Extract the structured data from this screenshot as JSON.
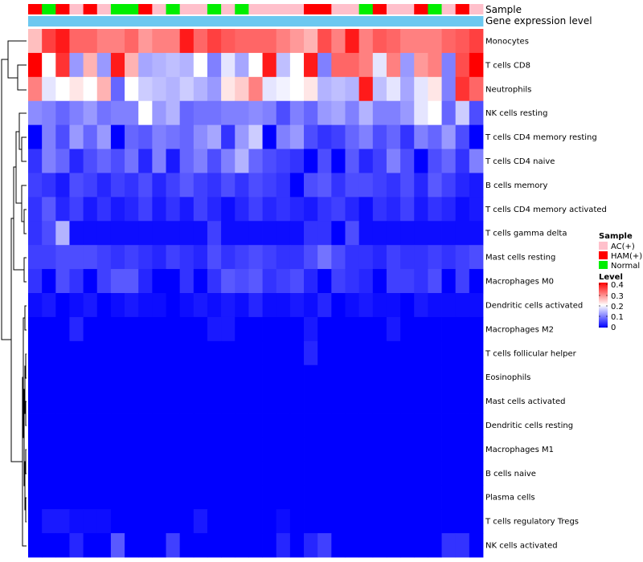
{
  "chart_data": {
    "type": "heatmap",
    "title": "",
    "column_annotations": [
      {
        "name": "Sample",
        "label": "Sample"
      },
      {
        "name": "Gene expression level",
        "label": "Gene expression level"
      }
    ],
    "sample_groups": [
      "HAM",
      "Normal",
      "HAM",
      "AC",
      "HAM",
      "AC",
      "Normal",
      "Normal",
      "HAM",
      "AC",
      "Normal",
      "AC",
      "AC",
      "Normal",
      "AC",
      "Normal",
      "AC",
      "AC",
      "AC",
      "AC",
      "HAM",
      "HAM",
      "AC",
      "AC",
      "Normal",
      "HAM",
      "AC",
      "AC",
      "HAM",
      "Normal",
      "AC",
      "HAM",
      "AC"
    ],
    "rows": [
      "Monocytes",
      "T cells CD8",
      "Neutrophils",
      "NK cells resting",
      "T cells CD4 memory resting",
      "T cells CD4 naive",
      "B cells memory",
      "T cells CD4 memory activated",
      "T cells gamma delta",
      "Mast cells resting",
      "Macrophages M0",
      "Dendritic cells activated",
      "Macrophages M2",
      "T cells follicular helper",
      "Eosinophils",
      "Mast cells activated",
      "Dendritic cells resting",
      "Macrophages M1",
      "B cells naive",
      "Plasma cells",
      "T cells regulatory  Tregs",
      "NK cells activated"
    ],
    "values": [
      [
        0.25,
        0.35,
        0.38,
        0.32,
        0.32,
        0.3,
        0.3,
        0.32,
        0.28,
        0.3,
        0.3,
        0.38,
        0.32,
        0.35,
        0.33,
        0.32,
        0.32,
        0.32,
        0.3,
        0.28,
        0.26,
        0.34,
        0.3,
        0.38,
        0.3,
        0.33,
        0.32,
        0.3,
        0.3,
        0.3,
        0.32,
        0.33,
        0.35
      ],
      [
        0.4,
        0.2,
        0.36,
        0.12,
        0.26,
        0.12,
        0.38,
        0.26,
        0.13,
        0.14,
        0.15,
        0.14,
        0.2,
        0.1,
        0.18,
        0.13,
        0.2,
        0.38,
        0.15,
        0.2,
        0.38,
        0.1,
        0.32,
        0.32,
        0.3,
        0.18,
        0.3,
        0.12,
        0.28,
        0.3,
        0.1,
        0.34,
        0.4
      ],
      [
        0.3,
        0.18,
        0.2,
        0.22,
        0.2,
        0.26,
        0.08,
        0.2,
        0.16,
        0.15,
        0.14,
        0.16,
        0.14,
        0.12,
        0.22,
        0.24,
        0.3,
        0.18,
        0.19,
        0.2,
        0.22,
        0.14,
        0.15,
        0.14,
        0.38,
        0.15,
        0.18,
        0.13,
        0.18,
        0.22,
        0.1,
        0.36,
        0.32
      ],
      [
        0.11,
        0.1,
        0.08,
        0.1,
        0.12,
        0.09,
        0.1,
        0.1,
        0.2,
        0.12,
        0.14,
        0.08,
        0.09,
        0.09,
        0.1,
        0.1,
        0.11,
        0.1,
        0.06,
        0.1,
        0.08,
        0.12,
        0.13,
        0.1,
        0.14,
        0.1,
        0.1,
        0.12,
        0.18,
        0.2,
        0.08,
        0.16,
        0.06
      ],
      [
        0.0,
        0.1,
        0.06,
        0.12,
        0.08,
        0.12,
        0.0,
        0.08,
        0.07,
        0.1,
        0.09,
        0.08,
        0.11,
        0.13,
        0.04,
        0.12,
        0.16,
        0.0,
        0.1,
        0.12,
        0.06,
        0.04,
        0.05,
        0.08,
        0.1,
        0.06,
        0.08,
        0.04,
        0.1,
        0.08,
        0.12,
        0.06,
        0.0
      ],
      [
        0.04,
        0.1,
        0.08,
        0.03,
        0.06,
        0.08,
        0.06,
        0.09,
        0.03,
        0.1,
        0.02,
        0.08,
        0.1,
        0.06,
        0.1,
        0.14,
        0.08,
        0.06,
        0.05,
        0.04,
        0.0,
        0.06,
        0.0,
        0.07,
        0.03,
        0.05,
        0.1,
        0.06,
        0.0,
        0.06,
        0.08,
        0.04,
        0.1
      ],
      [
        0.05,
        0.04,
        0.02,
        0.06,
        0.05,
        0.03,
        0.05,
        0.04,
        0.06,
        0.03,
        0.05,
        0.07,
        0.05,
        0.04,
        0.06,
        0.04,
        0.06,
        0.05,
        0.04,
        0.0,
        0.06,
        0.07,
        0.04,
        0.06,
        0.06,
        0.05,
        0.04,
        0.06,
        0.03,
        0.07,
        0.05,
        0.03,
        0.02
      ],
      [
        0.04,
        0.07,
        0.03,
        0.05,
        0.02,
        0.04,
        0.02,
        0.03,
        0.05,
        0.02,
        0.04,
        0.02,
        0.05,
        0.03,
        0.01,
        0.03,
        0.05,
        0.03,
        0.04,
        0.03,
        0.02,
        0.04,
        0.05,
        0.03,
        0.01,
        0.04,
        0.03,
        0.05,
        0.02,
        0.04,
        0.03,
        0.01,
        0.02
      ],
      [
        0.04,
        0.06,
        0.14,
        0.01,
        0.01,
        0.01,
        0.01,
        0.01,
        0.01,
        0.01,
        0.01,
        0.01,
        0.01,
        0.05,
        0.01,
        0.01,
        0.01,
        0.01,
        0.01,
        0.01,
        0.04,
        0.04,
        0.0,
        0.06,
        0.01,
        0.01,
        0.01,
        0.01,
        0.01,
        0.01,
        0.01,
        0.01,
        0.01
      ],
      [
        0.05,
        0.05,
        0.06,
        0.06,
        0.06,
        0.05,
        0.04,
        0.05,
        0.04,
        0.03,
        0.05,
        0.04,
        0.03,
        0.06,
        0.04,
        0.05,
        0.06,
        0.05,
        0.04,
        0.04,
        0.06,
        0.09,
        0.06,
        0.04,
        0.04,
        0.03,
        0.05,
        0.04,
        0.04,
        0.05,
        0.04,
        0.05,
        0.06
      ],
      [
        0.04,
        0.0,
        0.06,
        0.04,
        0.0,
        0.05,
        0.07,
        0.07,
        0.03,
        0.0,
        0.0,
        0.04,
        0.0,
        0.04,
        0.07,
        0.06,
        0.07,
        0.04,
        0.05,
        0.06,
        0.03,
        0.0,
        0.05,
        0.04,
        0.03,
        0.0,
        0.05,
        0.05,
        0.04,
        0.06,
        0.0,
        0.05,
        0.0
      ],
      [
        0.01,
        0.02,
        0.0,
        0.01,
        0.02,
        0.0,
        0.01,
        0.02,
        0.01,
        0.01,
        0.0,
        0.01,
        0.02,
        0.01,
        0.02,
        0.01,
        0.03,
        0.01,
        0.01,
        0.02,
        0.01,
        0.03,
        0.0,
        0.01,
        0.02,
        0.01,
        0.01,
        0.0,
        0.02,
        0.01,
        0.01,
        0.01,
        0.01
      ],
      [
        0.0,
        0.0,
        0.0,
        0.03,
        0.0,
        0.0,
        0.0,
        0.0,
        0.0,
        0.0,
        0.0,
        0.0,
        0.0,
        0.02,
        0.02,
        0.0,
        0.0,
        0.0,
        0.0,
        0.0,
        0.02,
        0.0,
        0.0,
        0.0,
        0.0,
        0.0,
        0.02,
        0.0,
        0.0,
        0.0,
        0.0,
        0.0,
        0.0
      ],
      [
        0.0,
        0.0,
        0.0,
        0.0,
        0.0,
        0.0,
        0.0,
        0.0,
        0.0,
        0.0,
        0.0,
        0.0,
        0.0,
        0.0,
        0.0,
        0.0,
        0.0,
        0.0,
        0.0,
        0.0,
        0.03,
        0.0,
        0.0,
        0.0,
        0.0,
        0.0,
        0.0,
        0.0,
        0.0,
        0.0,
        0.0,
        0.0,
        0.0
      ],
      [
        0.0,
        0.0,
        0.0,
        0.0,
        0.0,
        0.0,
        0.0,
        0.0,
        0.0,
        0.0,
        0.0,
        0.0,
        0.0,
        0.0,
        0.0,
        0.0,
        0.0,
        0.0,
        0.0,
        0.0,
        0.0,
        0.0,
        0.0,
        0.0,
        0.0,
        0.0,
        0.0,
        0.0,
        0.0,
        0.0,
        0.0,
        0.0,
        0.0
      ],
      [
        0.0,
        0.0,
        0.0,
        0.0,
        0.0,
        0.0,
        0.0,
        0.0,
        0.0,
        0.0,
        0.0,
        0.0,
        0.0,
        0.0,
        0.0,
        0.0,
        0.0,
        0.0,
        0.0,
        0.0,
        0.0,
        0.0,
        0.0,
        0.0,
        0.0,
        0.0,
        0.0,
        0.0,
        0.0,
        0.0,
        0.0,
        0.0,
        0.0
      ],
      [
        0.0,
        0.0,
        0.0,
        0.0,
        0.0,
        0.0,
        0.0,
        0.0,
        0.0,
        0.0,
        0.0,
        0.0,
        0.0,
        0.0,
        0.0,
        0.0,
        0.0,
        0.0,
        0.0,
        0.0,
        0.0,
        0.0,
        0.0,
        0.0,
        0.0,
        0.0,
        0.0,
        0.0,
        0.0,
        0.0,
        0.0,
        0.0,
        0.0
      ],
      [
        0.0,
        0.0,
        0.0,
        0.0,
        0.0,
        0.0,
        0.0,
        0.0,
        0.0,
        0.0,
        0.0,
        0.0,
        0.0,
        0.0,
        0.0,
        0.0,
        0.0,
        0.0,
        0.0,
        0.0,
        0.0,
        0.0,
        0.0,
        0.0,
        0.0,
        0.0,
        0.0,
        0.0,
        0.0,
        0.0,
        0.0,
        0.0,
        0.0
      ],
      [
        0.0,
        0.0,
        0.0,
        0.0,
        0.0,
        0.0,
        0.0,
        0.0,
        0.0,
        0.0,
        0.0,
        0.0,
        0.0,
        0.0,
        0.0,
        0.0,
        0.0,
        0.0,
        0.0,
        0.0,
        0.0,
        0.0,
        0.0,
        0.0,
        0.0,
        0.0,
        0.0,
        0.0,
        0.0,
        0.0,
        0.0,
        0.0,
        0.0
      ],
      [
        0.0,
        0.0,
        0.0,
        0.0,
        0.0,
        0.0,
        0.0,
        0.0,
        0.0,
        0.0,
        0.0,
        0.0,
        0.0,
        0.0,
        0.0,
        0.0,
        0.0,
        0.0,
        0.0,
        0.0,
        0.0,
        0.0,
        0.0,
        0.0,
        0.0,
        0.0,
        0.0,
        0.0,
        0.0,
        0.0,
        0.0,
        0.0,
        0.0
      ],
      [
        0.0,
        0.02,
        0.02,
        0.01,
        0.01,
        0.01,
        0.0,
        0.0,
        0.0,
        0.0,
        0.0,
        0.0,
        0.02,
        0.0,
        0.0,
        0.0,
        0.0,
        0.0,
        0.01,
        0.0,
        0.0,
        0.0,
        0.0,
        0.0,
        0.0,
        0.0,
        0.0,
        0.0,
        0.0,
        0.0,
        0.0,
        0.0,
        0.0
      ],
      [
        0.0,
        0.0,
        0.0,
        0.03,
        0.0,
        0.0,
        0.07,
        0.0,
        0.0,
        0.0,
        0.05,
        0.0,
        0.0,
        0.0,
        0.0,
        0.0,
        0.0,
        0.0,
        0.03,
        0.0,
        0.03,
        0.05,
        0.0,
        0.0,
        0.0,
        0.0,
        0.0,
        0.0,
        0.0,
        0.0,
        0.04,
        0.04,
        0.0
      ]
    ],
    "legend": {
      "sample": {
        "title": "Sample",
        "entries": [
          {
            "key": "AC",
            "label": "AC(+)",
            "color": "#FFC0CB"
          },
          {
            "key": "HAM",
            "label": "HAM(+)",
            "color": "#FF0000"
          },
          {
            "key": "Normal",
            "label": "Normal",
            "color": "#00EE00"
          }
        ]
      },
      "level": {
        "title": "Level",
        "min": 0,
        "max": 0.4,
        "ticks": [
          "0.4",
          "0.3",
          "0.2",
          "0.1",
          "0"
        ]
      }
    },
    "colors": {
      "low": "#0000FF",
      "mid": "#FFFFFF",
      "high": "#FF0000",
      "expression_bar": "#6CC8F0"
    }
  }
}
